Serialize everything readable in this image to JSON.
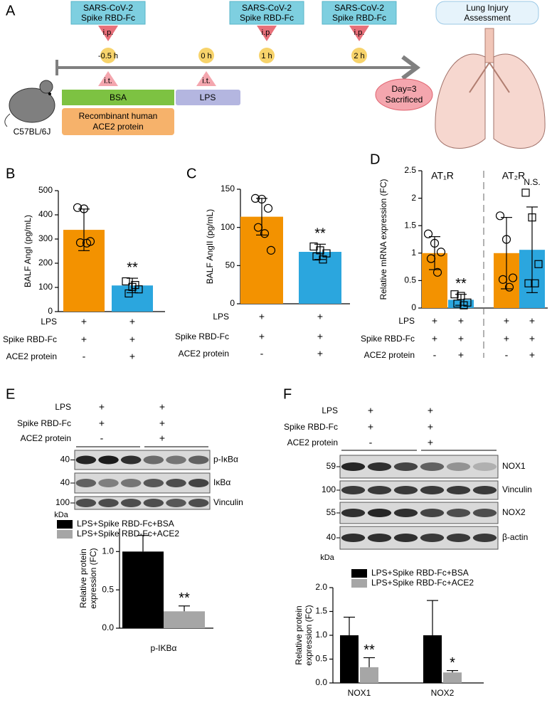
{
  "panel_labels": [
    "A",
    "B",
    "C",
    "D",
    "E",
    "F"
  ],
  "panel_a": {
    "injections": [
      {
        "lines": [
          "SARS-CoV-2",
          "Spike RBD-Fc"
        ],
        "route": "i.p."
      },
      {
        "lines": [
          "SARS-CoV-2",
          "Spike RBD-Fc"
        ],
        "route": "i.p."
      },
      {
        "lines": [
          "SARS-CoV-2",
          "Spike RBD-Fc"
        ],
        "route": "i.p."
      }
    ],
    "timepoints": [
      "-0.5 h",
      "0 h",
      "1 h",
      "2 h"
    ],
    "instillations": [
      "i.t.",
      "i.t."
    ],
    "bsa": "BSA",
    "ace2": [
      "Recombinant human",
      "ACE2 protein"
    ],
    "lps": "LPS",
    "end": [
      "Day=3",
      "Sacrificed"
    ],
    "assessment": [
      "Lung Injury",
      "Assessment"
    ],
    "strain": "C57BL/6J"
  },
  "chart_data": [
    {
      "type": "bar_points",
      "y_label": [
        "BALF AngI (pg/mL)"
      ],
      "ylim": [
        0,
        500
      ],
      "yticks": [
        0,
        100,
        200,
        300,
        400,
        500
      ],
      "conditions": [
        {
          "name": "LPS",
          "signs": [
            "+",
            "+"
          ]
        },
        {
          "name": "Spike RBD-Fc",
          "signs": [
            "+",
            "+"
          ]
        },
        {
          "name": "ACE2 protein",
          "signs": [
            "-",
            "+"
          ]
        }
      ],
      "values": [
        338,
        108
      ],
      "errors": [
        86,
        30
      ],
      "colors": [
        "#f39200",
        "#2ba6de"
      ],
      "markers": [
        "circle",
        "square"
      ],
      "points": [
        [
          430,
          425,
          290,
          285,
          283
        ],
        [
          125,
          102,
          92,
          75,
          110
        ]
      ],
      "annotations": [
        null,
        "**"
      ]
    },
    {
      "type": "bar_points",
      "y_label": [
        "BALF AngII (pg/mL)"
      ],
      "ylim": [
        0,
        150
      ],
      "yticks": [
        0,
        50,
        100,
        150
      ],
      "conditions": [
        {
          "name": "LPS",
          "signs": [
            "+",
            "+"
          ]
        },
        {
          "name": "Spike RBD-Fc",
          "signs": [
            "+",
            "+"
          ]
        },
        {
          "name": "ACE2 protein",
          "signs": [
            "-",
            "+"
          ]
        }
      ],
      "values": [
        114,
        68
      ],
      "errors": [
        24,
        10
      ],
      "colors": [
        "#f39200",
        "#2ba6de"
      ],
      "markers": [
        "circle",
        "square"
      ],
      "points": [
        [
          138,
          137,
          125,
          100,
          92,
          70
        ],
        [
          75,
          70,
          66,
          62,
          58
        ]
      ],
      "annotations": [
        null,
        "**"
      ]
    },
    {
      "type": "bar_points",
      "y_label": [
        "Relative mRNA expression (FC)"
      ],
      "ylim": [
        0,
        2.5
      ],
      "yticks": [
        0,
        0.5,
        1,
        {
          "value": 1.5,
          "label": "1.5"
        },
        2,
        2.5
      ],
      "group_labels": [
        "AT₁R",
        "AT₂R"
      ],
      "conditions": [
        {
          "name": "LPS",
          "signs": [
            "+",
            "+",
            "+",
            "+"
          ]
        },
        {
          "name": "Spike RBD-Fc",
          "signs": [
            "+",
            "+",
            "+",
            "+"
          ]
        },
        {
          "name": "ACE2 protein",
          "signs": [
            "-",
            "+",
            "-",
            "+"
          ]
        }
      ],
      "values": [
        1.0,
        0.15,
        1.0,
        1.06
      ],
      "errors": [
        0.3,
        0.1,
        0.65,
        0.78
      ],
      "colors": [
        "#f39200",
        "#2ba6de",
        "#f39200",
        "#2ba6de"
      ],
      "markers": [
        "circle",
        "square",
        "circle",
        "square"
      ],
      "points": [
        [
          1.35,
          1.18,
          1.02,
          0.9,
          0.65
        ],
        [
          0.25,
          0.22,
          0.1,
          0.08,
          0.05
        ],
        [
          1.68,
          1.25,
          0.55,
          0.52,
          0.38
        ],
        [
          2.1,
          1.65,
          0.8,
          0.45,
          0.45
        ]
      ],
      "annotations": [
        null,
        "**",
        null,
        "N.S."
      ]
    },
    {
      "type": "grouped_bar",
      "y_label": [
        "Relative protein",
        "expression (FC)"
      ],
      "ylim": [
        0,
        1.3
      ],
      "yticks": [
        {
          "value": 0,
          "label": "0.0"
        },
        {
          "value": 0.5,
          "label": "0.5"
        },
        {
          "value": 1,
          "label": "1.0"
        }
      ],
      "categories": [
        "p-IKBα"
      ],
      "series": [
        {
          "name": "LPS+Spike RBD-Fc+BSA",
          "color": "#000000",
          "values": [
            1.0
          ],
          "errors": [
            0.21
          ],
          "annotations": [
            null
          ]
        },
        {
          "name": "LPS+Spike RBD-Fc+ACE2",
          "color": "#a6a6a6",
          "values": [
            0.22
          ],
          "errors": [
            0.07
          ],
          "annotations": [
            "**"
          ]
        }
      ]
    },
    {
      "type": "grouped_bar",
      "y_label": [
        "Relative protein",
        "expression (FC)"
      ],
      "ylim": [
        0,
        2.0
      ],
      "yticks": [
        {
          "value": 0,
          "label": "0.0"
        },
        {
          "value": 0.5,
          "label": "0.5"
        },
        {
          "value": 1,
          "label": "1.0"
        },
        {
          "value": 1.5,
          "label": "1.5"
        },
        {
          "value": 2,
          "label": "2.0"
        }
      ],
      "categories": [
        "NOX1",
        "NOX2"
      ],
      "series": [
        {
          "name": "LPS+Spike RBD-Fc+BSA",
          "color": "#000000",
          "values": [
            1.0,
            1.0
          ],
          "errors": [
            0.38,
            0.73
          ],
          "annotations": [
            null,
            null
          ]
        },
        {
          "name": "LPS+Spike RBD-Fc+ACE2",
          "color": "#a6a6a6",
          "values": [
            0.33,
            0.22
          ],
          "errors": [
            0.2,
            0.04
          ],
          "annotations": [
            "**",
            "*"
          ]
        }
      ]
    }
  ],
  "blots": [
    {
      "conditions": [
        {
          "name": "LPS",
          "signs": [
            "+",
            "+"
          ]
        },
        {
          "name": "Spike RBD-Fc",
          "signs": [
            "+",
            "+"
          ]
        },
        {
          "name": "ACE2 protein",
          "signs": [
            "-",
            "+"
          ]
        }
      ],
      "rows": [
        {
          "label": "p-IκBα",
          "marker": "40"
        },
        {
          "label": "IκBα",
          "marker": "40"
        },
        {
          "label": "Vinculin",
          "marker": "100"
        }
      ],
      "unit": "kDa"
    },
    {
      "conditions": [
        {
          "name": "LPS",
          "signs": [
            "+",
            "+"
          ]
        },
        {
          "name": "Spike RBD-Fc",
          "signs": [
            "+",
            "+"
          ]
        },
        {
          "name": "ACE2 protein",
          "signs": [
            "-",
            "+"
          ]
        }
      ],
      "rows": [
        {
          "label": "NOX1",
          "marker": "59"
        },
        {
          "label": "Vinculin",
          "marker": "100"
        },
        {
          "label": "NOX2",
          "marker": "55"
        },
        {
          "label": "β-actin",
          "marker": "40"
        }
      ],
      "unit": "kDa"
    }
  ]
}
